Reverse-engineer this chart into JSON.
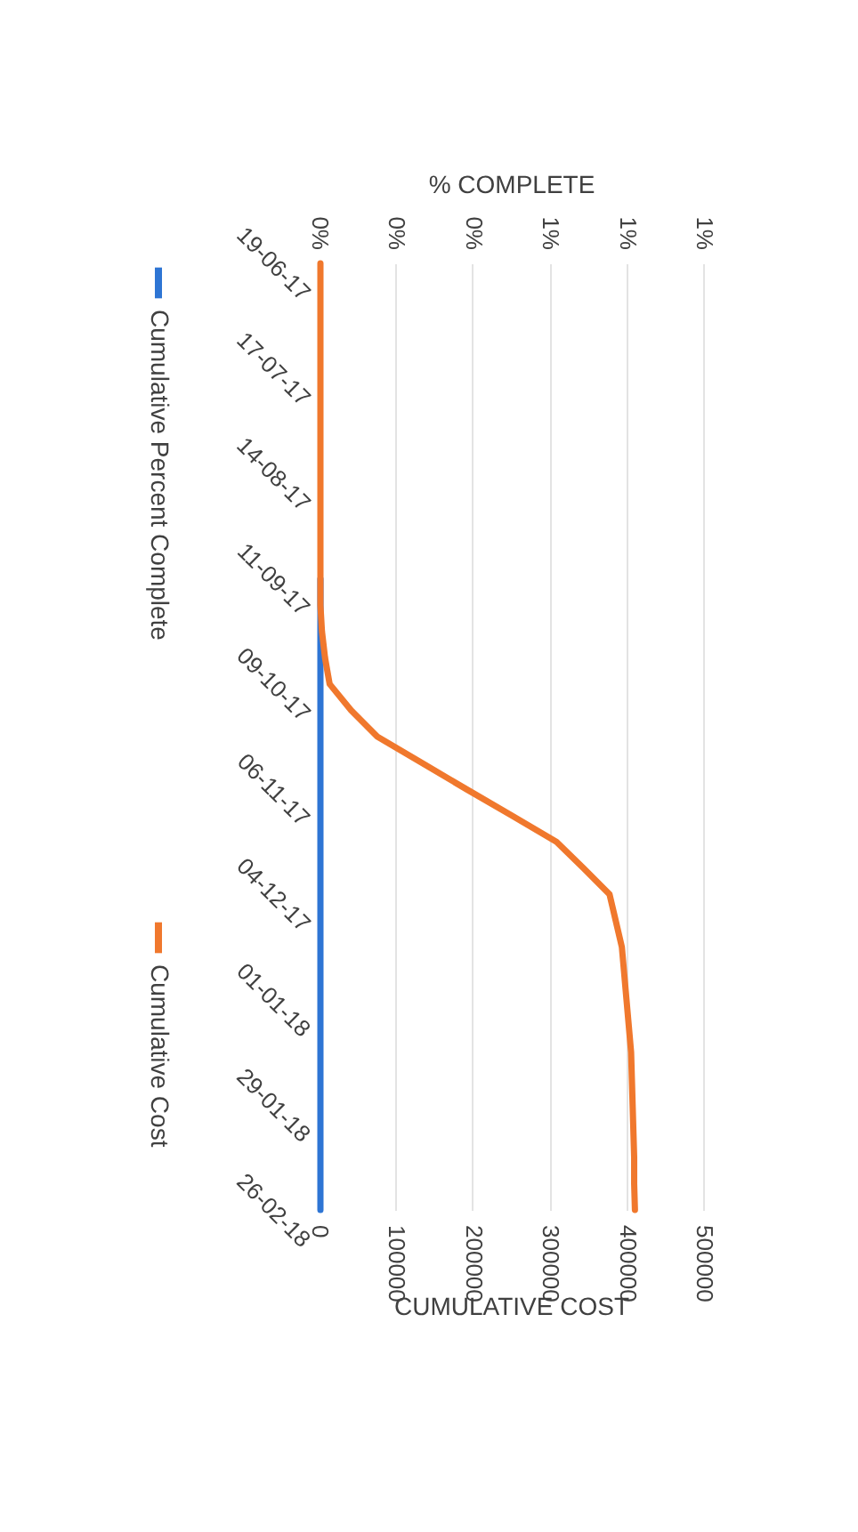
{
  "chart_data": {
    "type": "line",
    "orientation": "horizontal",
    "categories": [
      "19-06-17",
      null,
      null,
      null,
      "17-07-17",
      null,
      null,
      null,
      "14-08-17",
      null,
      null,
      null,
      "11-09-17",
      null,
      null,
      null,
      "09-10-17",
      null,
      null,
      null,
      "06-11-17",
      null,
      null,
      null,
      "04-12-17",
      null,
      null,
      null,
      "01-01-18",
      null,
      null,
      null,
      "29-01-18",
      null,
      null,
      null,
      "26-02-18"
    ],
    "series": [
      {
        "name": "Cumulative Percent Complete",
        "color": "#2e75d4",
        "axis": "x2",
        "values": [
          null,
          null,
          null,
          null,
          null,
          null,
          null,
          null,
          null,
          null,
          null,
          null,
          0,
          0,
          0,
          0,
          0,
          0,
          0,
          0,
          0,
          0,
          0,
          0,
          0,
          0,
          0,
          0,
          0,
          0,
          0,
          0,
          0,
          0,
          0,
          0,
          0
        ]
      },
      {
        "name": "Cumulative Cost",
        "color": "#f0782d",
        "values": [
          0,
          0,
          0,
          0,
          0,
          0,
          0,
          0,
          0,
          0,
          0,
          0,
          0,
          0,
          2000,
          6000,
          12000,
          40000,
          74000,
          132000,
          190000,
          249000,
          307000,
          342000,
          376000,
          384000,
          392000,
          395000,
          398000,
          401000,
          404000,
          405000,
          406000,
          407000,
          408000,
          408000,
          409000
        ]
      }
    ],
    "xlabel": "CUMULATIVE COST",
    "x2label": "% COMPLETE",
    "xlim": [
      0,
      500000
    ],
    "xticks": [
      0,
      100000,
      200000,
      300000,
      400000,
      500000
    ],
    "x2lim": [
      0,
      1
    ],
    "x2ticks": [
      {
        "value": 0,
        "label": "0%"
      },
      {
        "value": 0.2,
        "label": "0%"
      },
      {
        "value": 0.4,
        "label": "0%"
      },
      {
        "value": 0.6,
        "label": "1%"
      },
      {
        "value": 0.8,
        "label": "1%"
      },
      {
        "value": 1,
        "label": "1%"
      }
    ],
    "grid": "x",
    "legend": "left"
  }
}
